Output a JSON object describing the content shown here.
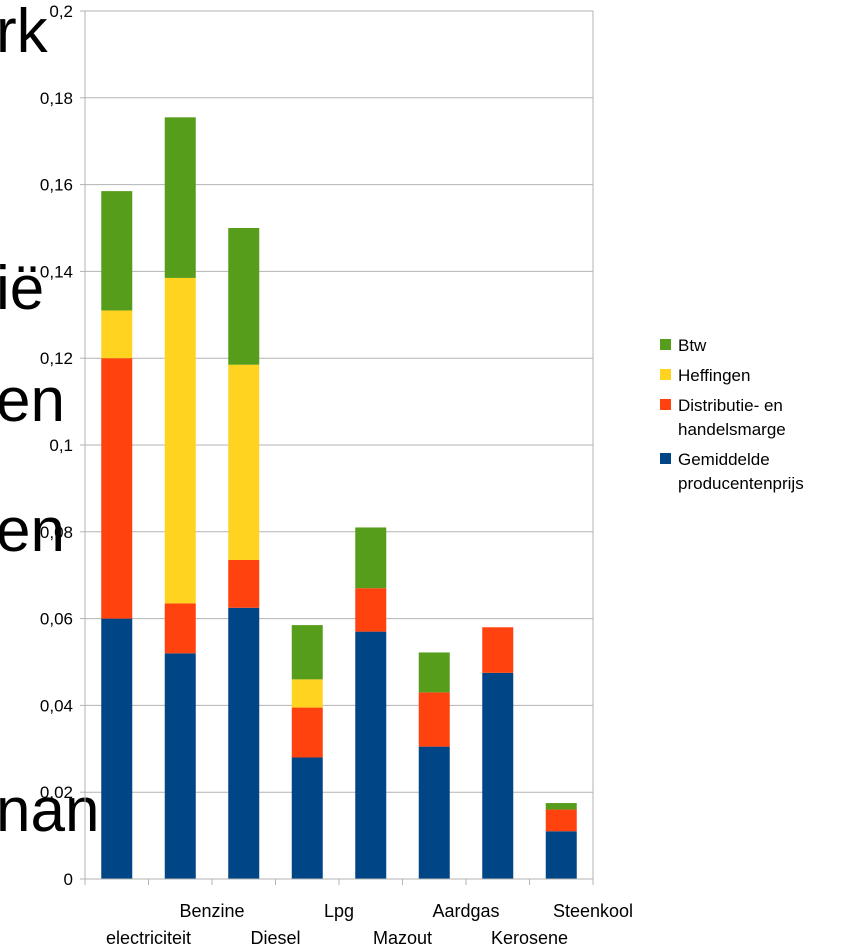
{
  "background_text": [
    "rk",
    "ië",
    "en",
    "en",
    "nan"
  ],
  "chart_data": {
    "type": "bar",
    "stacked": true,
    "categories": [
      "electriciteit",
      "Benzine",
      "Diesel",
      "Lpg",
      "Mazout",
      "Aardgas",
      "Kerosene",
      "Steenkool"
    ],
    "series": [
      {
        "name": "Gemiddelde producentenprijs",
        "color": "#004586",
        "values": [
          0.06,
          0.052,
          0.0625,
          0.028,
          0.057,
          0.0305,
          0.0475,
          0.011
        ]
      },
      {
        "name": "Distributie- en handelsmarge",
        "color": "#ff420e",
        "values": [
          0.06,
          0.0115,
          0.011,
          0.0115,
          0.01,
          0.0125,
          0.0105,
          0.005
        ]
      },
      {
        "name": "Heffingen",
        "color": "#ffd320",
        "values": [
          0.011,
          0.075,
          0.045,
          0.0065,
          0,
          0,
          0,
          0
        ]
      },
      {
        "name": "Btw",
        "color": "#579d1c",
        "values": [
          0.0275,
          0.037,
          0.0315,
          0.0125,
          0.014,
          0.0092,
          0,
          0.0015
        ]
      }
    ],
    "legend_order": [
      "Btw",
      "Heffingen",
      "Distributie- en handelsmarge",
      "Gemiddelde producentenprijs"
    ],
    "legend_lines": [
      [
        "Btw"
      ],
      [
        "Heffingen"
      ],
      [
        "Distributie- en",
        "handelsmarge"
      ],
      [
        "Gemiddelde",
        "producentenprijs"
      ]
    ],
    "yticks": [
      "0",
      "0,02",
      "0,04",
      "0,06",
      "0,08",
      "0,1",
      "0,12",
      "0,14",
      "0,16",
      "0,18",
      "0,2"
    ],
    "ylim": [
      0,
      0.2
    ],
    "grid": true,
    "legend_position": "right",
    "title": "",
    "xlabel": "",
    "ylabel": ""
  }
}
